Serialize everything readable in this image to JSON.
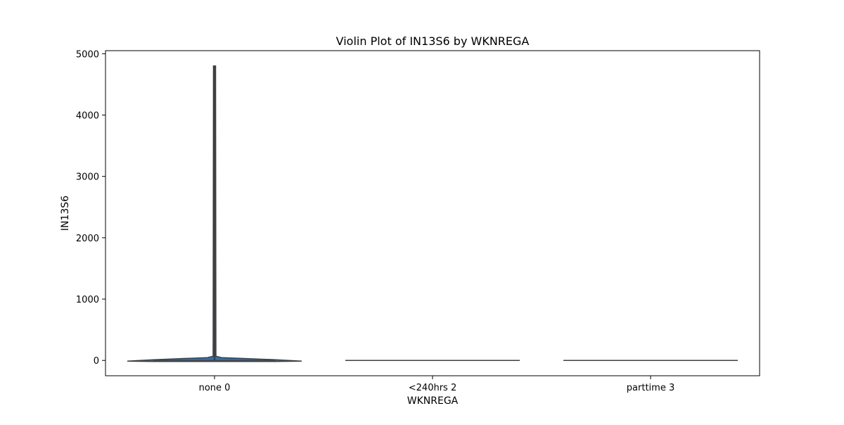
{
  "chart_data": {
    "type": "violin",
    "title": "Violin Plot of IN13S6 by WKNREGA",
    "xlabel": "WKNREGA",
    "ylabel": "IN13S6",
    "categories": [
      "none 0",
      "<240hrs 2",
      "parttime 3"
    ],
    "ylim": [
      -250,
      5050
    ],
    "yticks": [
      0,
      1000,
      2000,
      3000,
      4000,
      5000
    ],
    "grid": false,
    "violins": [
      {
        "category": "none 0",
        "min": 0,
        "max": 4800,
        "median": 0,
        "body_color": "#3a6fa5"
      },
      {
        "category": "<240hrs 2",
        "min": 0,
        "max": 0,
        "median": 0,
        "body_color": "#3a6fa5"
      },
      {
        "category": "parttime 3",
        "min": 0,
        "max": 0,
        "median": 0,
        "body_color": "#3a6fa5"
      }
    ]
  }
}
